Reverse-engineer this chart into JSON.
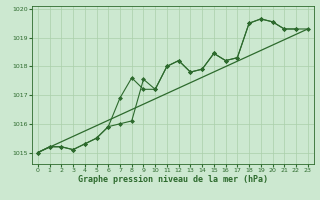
{
  "background_color": "#cce8d0",
  "grid_color": "#aacfaa",
  "line_color": "#2d6a2d",
  "marker_color": "#2d6a2d",
  "xlabel": "Graphe pression niveau de la mer (hPa)",
  "xlabel_fontsize": 6,
  "ylim": [
    1014.6,
    1020.1
  ],
  "xlim": [
    -0.5,
    23.5
  ],
  "yticks": [
    1015,
    1016,
    1017,
    1018,
    1019,
    1020
  ],
  "xticks": [
    0,
    1,
    2,
    3,
    4,
    5,
    6,
    7,
    8,
    9,
    10,
    11,
    12,
    13,
    14,
    15,
    16,
    17,
    18,
    19,
    20,
    21,
    22,
    23
  ],
  "line1_x": [
    0,
    1,
    2,
    3,
    4,
    5,
    6,
    7,
    8,
    9,
    10,
    11,
    12,
    13,
    14,
    15,
    16,
    17,
    18,
    19,
    20,
    21,
    22
  ],
  "line1_y": [
    1015.0,
    1015.2,
    1015.2,
    1015.1,
    1015.3,
    1015.5,
    1015.9,
    1016.9,
    1017.6,
    1017.2,
    1017.2,
    1018.0,
    1018.2,
    1017.8,
    1017.9,
    1018.45,
    1018.2,
    1018.3,
    1019.5,
    1019.65,
    1019.55,
    1019.3,
    1019.3
  ],
  "line2_x": [
    0,
    1,
    2,
    3,
    4,
    5,
    6,
    7,
    8,
    9,
    10,
    11,
    12,
    13,
    14,
    15,
    16,
    17,
    18,
    19,
    20,
    21,
    22,
    23
  ],
  "line2_y": [
    1015.0,
    1015.2,
    1015.2,
    1015.1,
    1015.3,
    1015.5,
    1015.9,
    1016.0,
    1016.1,
    1017.55,
    1017.2,
    1018.0,
    1018.2,
    1017.8,
    1017.9,
    1018.45,
    1018.2,
    1018.3,
    1019.5,
    1019.65,
    1019.55,
    1019.3,
    1019.3,
    1019.3
  ],
  "line3_x": [
    0,
    23
  ],
  "line3_y": [
    1015.0,
    1019.3
  ]
}
